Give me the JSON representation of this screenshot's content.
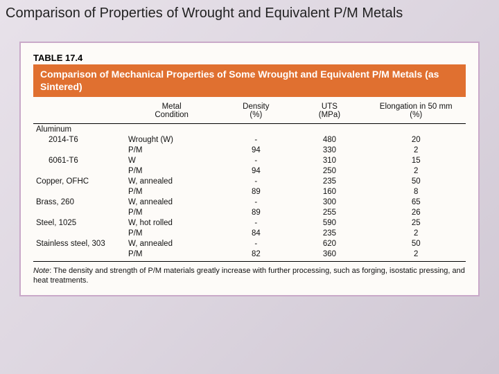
{
  "slide": {
    "title": "Comparison of Properties of Wrought and Equivalent P/M Metals"
  },
  "table": {
    "label": "TABLE 17.4",
    "banner": "Comparison of Mechanical Properties of Some Wrought and Equivalent P/M Metals (as Sintered)",
    "headers": {
      "material": "",
      "condition_l1": "Metal",
      "condition_l2": "Condition",
      "density_l1": "Density",
      "density_l2": "(%)",
      "uts_l1": "UTS",
      "uts_l2": "(MPa)",
      "elong_l1": "Elongation in 50 mm",
      "elong_l2": "(%)"
    },
    "rows": [
      {
        "mat": "Aluminum",
        "indent": false,
        "cond": "",
        "dens": "",
        "uts": "",
        "elong": ""
      },
      {
        "mat": "2014-T6",
        "indent": true,
        "cond": "Wrought (W)",
        "dens": "-",
        "uts": "480",
        "elong": "20"
      },
      {
        "mat": "",
        "indent": true,
        "cond": "P/M",
        "dens": "94",
        "uts": "330",
        "elong": "2"
      },
      {
        "mat": "6061-T6",
        "indent": true,
        "cond": "W",
        "dens": "-",
        "uts": "310",
        "elong": "15"
      },
      {
        "mat": "",
        "indent": true,
        "cond": "P/M",
        "dens": "94",
        "uts": "250",
        "elong": "2"
      },
      {
        "mat": "Copper, OFHC",
        "indent": false,
        "cond": "W, annealed",
        "dens": "-",
        "uts": "235",
        "elong": "50"
      },
      {
        "mat": "",
        "indent": true,
        "cond": "P/M",
        "dens": "89",
        "uts": "160",
        "elong": "8"
      },
      {
        "mat": "Brass, 260",
        "indent": false,
        "cond": "W, annealed",
        "dens": "-",
        "uts": "300",
        "elong": "65"
      },
      {
        "mat": "",
        "indent": true,
        "cond": "P/M",
        "dens": "89",
        "uts": "255",
        "elong": "26"
      },
      {
        "mat": "Steel, 1025",
        "indent": false,
        "cond": "W, hot rolled",
        "dens": "-",
        "uts": "590",
        "elong": "25"
      },
      {
        "mat": "",
        "indent": true,
        "cond": "P/M",
        "dens": "84",
        "uts": "235",
        "elong": "2"
      },
      {
        "mat": "Stainless steel, 303",
        "indent": false,
        "cond": "W, annealed",
        "dens": "-",
        "uts": "620",
        "elong": "50"
      },
      {
        "mat": "",
        "indent": true,
        "cond": "P/M",
        "dens": "82",
        "uts": "360",
        "elong": "2"
      }
    ],
    "note_label": "Note",
    "note_text": ": The density and strength of P/M materials greatly increase with further processing, such as forging, isostatic pressing, and heat treatments."
  },
  "style": {
    "banner_bg": "#e07030",
    "banner_fg": "#ffffff",
    "card_border": "#c9a9c9",
    "card_bg": "#fdfbf8"
  }
}
